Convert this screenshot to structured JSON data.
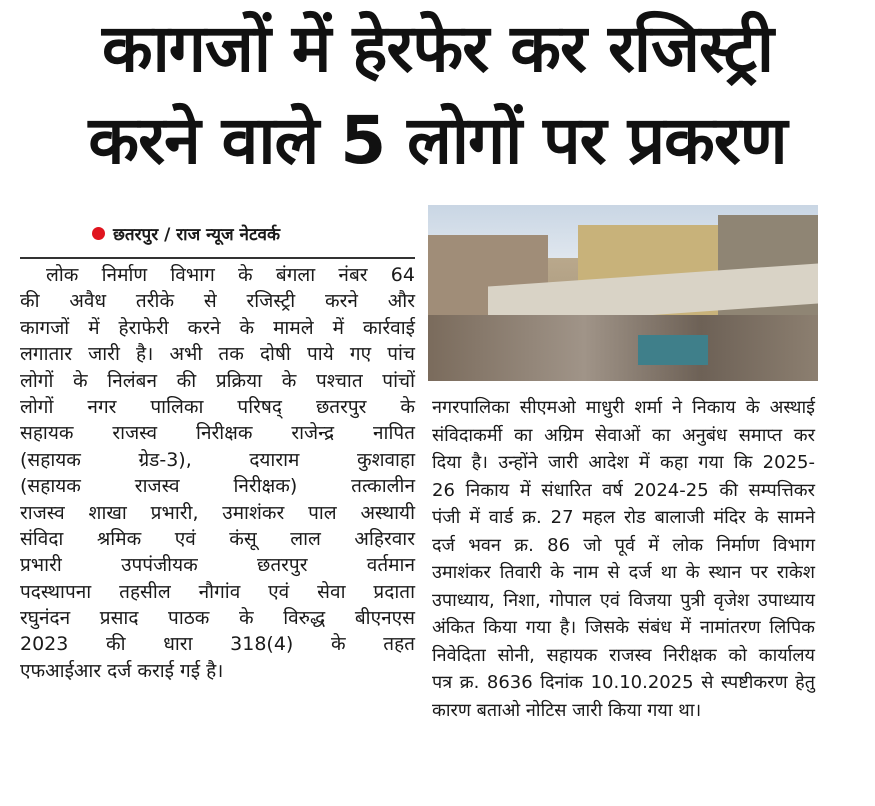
{
  "headline": {
    "line1": "कागजों में हेरफेर कर रजिस्ट्री",
    "line2": "करने वाले 5 लोगों पर प्रकरण"
  },
  "byline": "छतरपुर / राज न्यूज नेटवर्क",
  "colors": {
    "accent_dot": "#e0141e"
  },
  "left_column": [
    "लोक निर्माण विभाग के बंगला नंबर 64",
    "की अवैध तरीके से रजिस्ट्री करने और",
    "कागजों में हेराफेरी करने के मामले में कार्रवाई",
    "लगातार जारी है। अभी तक दोषी पाये गए पांच",
    "लोगों के निलंबन की प्रक्रिया के पश्चात पांचों",
    "लोगों नगर पालिका परिषद् छतरपुर के",
    "सहायक राजस्व निरीक्षक राजेन्द्र नापित",
    "(सहायक ग्रेड-3), दयाराम कुशवाहा",
    "(सहायक राजस्व निरीक्षक) तत्कालीन",
    "राजस्व शाखा प्रभारी, उमाशंकर पाल अस्थायी",
    "संविदा श्रमिक एवं कंसू लाल अहिरवार",
    "प्रभारी उपपंजीयक छतरपुर वर्तमान",
    "पदस्थापना तहसील नौगांव एवं सेवा प्रदाता",
    "रघुनंदन प्रसाद पाठक के विरुद्ध बीएनएस",
    "2023 की धारा 318(4) के तहत",
    "एफआईआर दर्ज कराई गई है।"
  ],
  "right_column": [
    "नगरपालिका सीएमओ माधुरी शर्मा ने निकाय के अस्थाई",
    "संविदाकर्मी का अग्रिम सेवाओं का अनुबंध समाप्त कर",
    "दिया है। उन्होंने जारी आदेश में कहा गया कि 2025-",
    "26 निकाय में संधारित वर्ष 2024-25 की सम्पत्तिकर",
    "पंजी में वार्ड क्र. 27 महल रोड बालाजी मंदिर के सामने",
    "दर्ज भवन क्र. 86 जो पूर्व में लोक निर्माण विभाग",
    "उमाशंकर तिवारी के नाम से दर्ज था के स्थान पर राकेश",
    "उपाध्याय, निशा, गोपाल एवं विजया पुत्री वृजेश उपाध्याय",
    "अंकित किया गया है। जिसके संबंध में नामांतरण लिपिक",
    "निवेदिता सोनी, सहायक राजस्व निरीक्षक को कार्यालय",
    "पत्र क्र. 8636 दिनांक 10.10.2025 से स्पष्टीकरण हेतु",
    "कारण बताओ नोटिस जारी किया गया था।"
  ]
}
